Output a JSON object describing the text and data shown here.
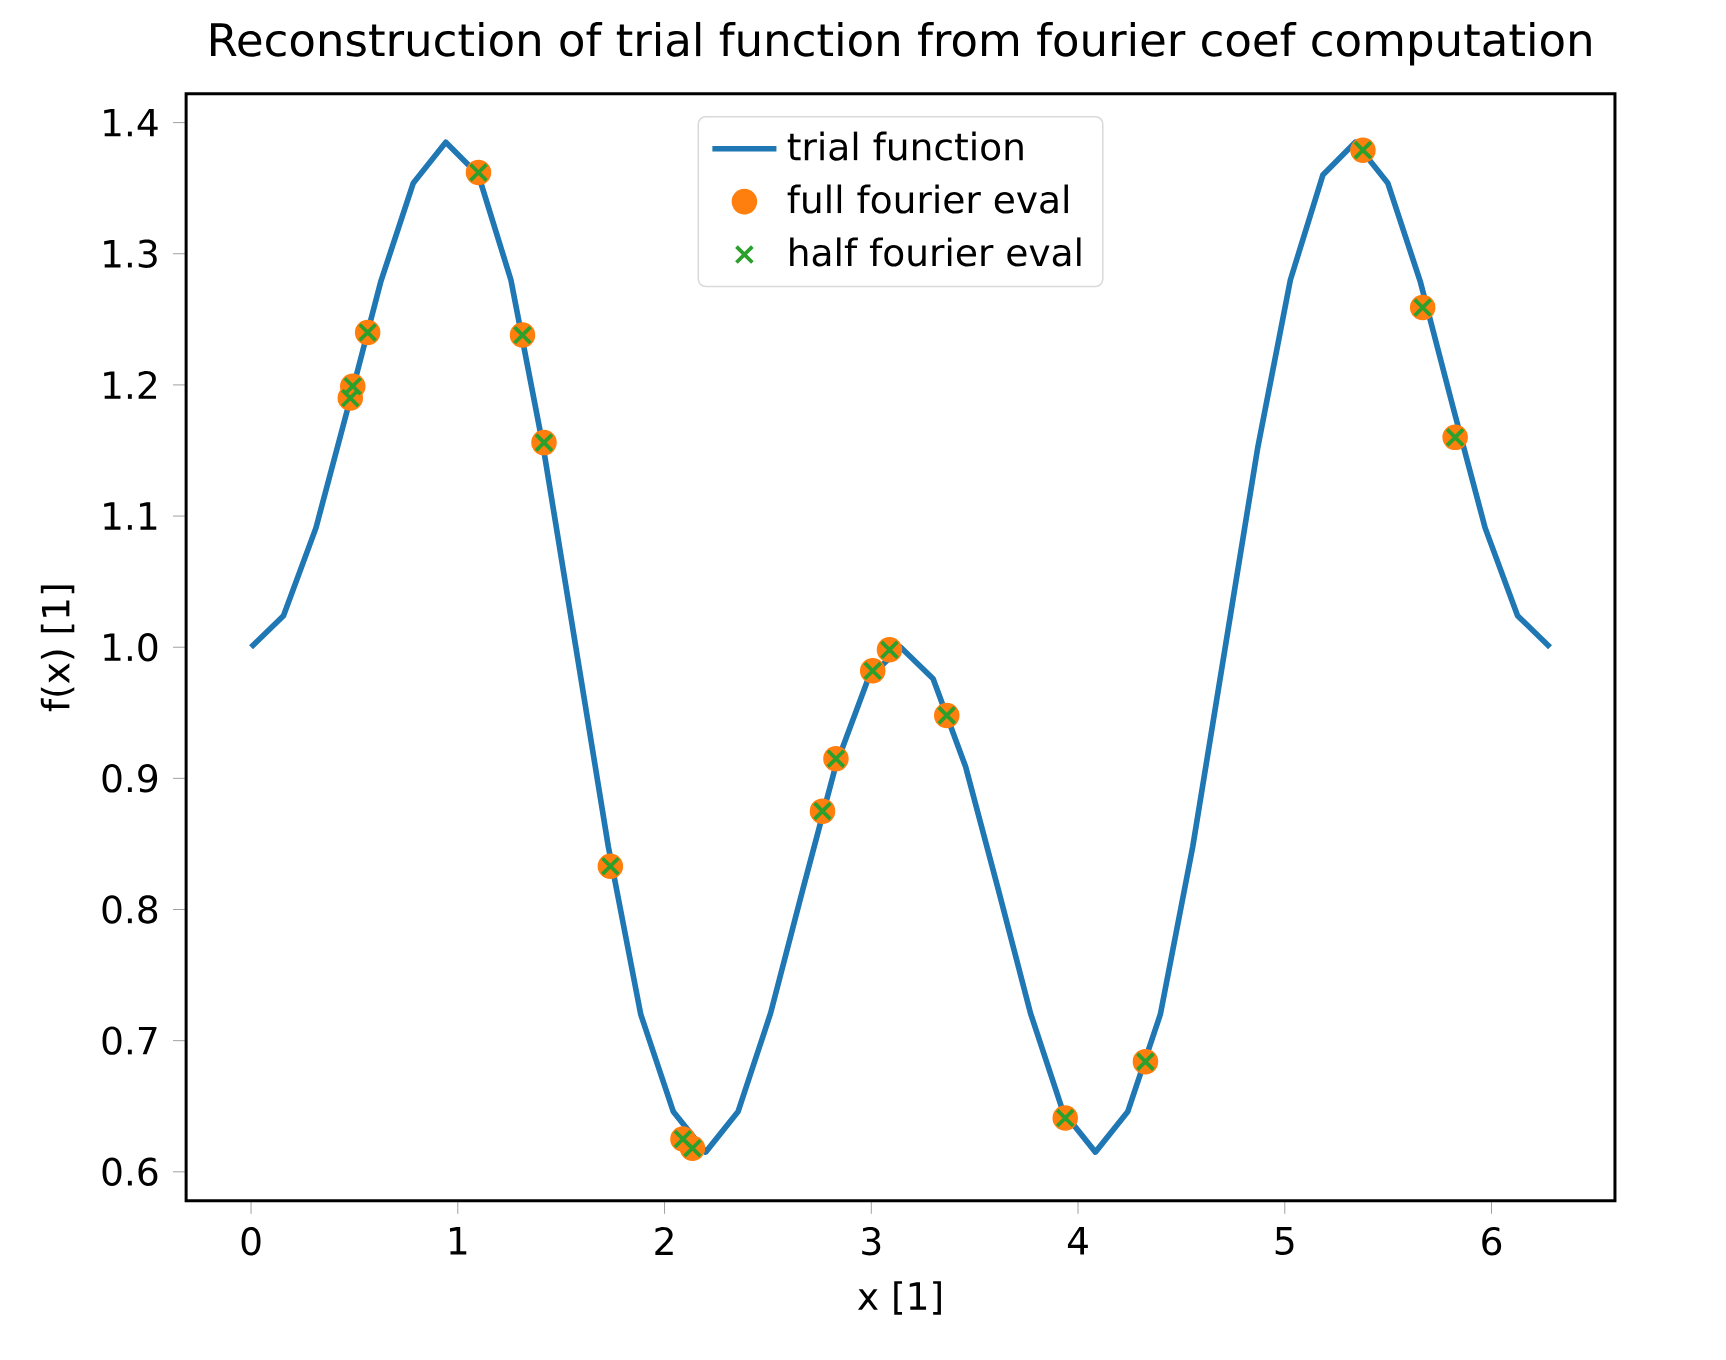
{
  "chart_data": {
    "type": "line",
    "title": "Reconstruction of trial function from fourier coef computation",
    "xlabel": "x [1]",
    "ylabel": "f(x) [1]",
    "xlim": [
      -0.314,
      6.597
    ],
    "ylim": [
      0.578,
      1.422
    ],
    "xticks": [
      0,
      1,
      2,
      3,
      4,
      5,
      6
    ],
    "yticks": [
      {
        "value": 0.6,
        "label": "0.6"
      },
      {
        "value": 0.7,
        "label": "0.7"
      },
      {
        "value": 0.8,
        "label": "0.8"
      },
      {
        "value": 0.9,
        "label": "0.9"
      },
      {
        "value": 1.0,
        "label": "1.0"
      },
      {
        "value": 1.1,
        "label": "1.1"
      },
      {
        "value": 1.2,
        "label": "1.2"
      },
      {
        "value": 1.3,
        "label": "1.3"
      },
      {
        "value": 1.4,
        "label": "1.4"
      }
    ],
    "grid": false,
    "legend": "top",
    "series": [
      {
        "name": "trial function",
        "color": "#1f77b4",
        "marker": "none",
        "line_style": "solid",
        "x": [
          0,
          0.157,
          0.314,
          0.471,
          0.628,
          0.785,
          0.942,
          1.1,
          1.257,
          1.414,
          1.571,
          1.728,
          1.885,
          2.042,
          2.199,
          2.356,
          2.513,
          2.67,
          2.827,
          2.985,
          3.142,
          3.299,
          3.456,
          3.613,
          3.77,
          3.927,
          4.084,
          4.241,
          4.398,
          4.555,
          4.712,
          4.869,
          5.027,
          5.184,
          5.341,
          5.498,
          5.655,
          5.812,
          5.969,
          6.126,
          6.283
        ],
        "values": [
          1.0,
          1.024,
          1.091,
          1.184,
          1.279,
          1.354,
          1.385,
          1.36,
          1.28,
          1.152,
          1.0,
          0.848,
          0.72,
          0.646,
          0.615,
          0.646,
          0.721,
          0.816,
          0.909,
          0.976,
          1.0,
          0.976,
          0.909,
          0.816,
          0.721,
          0.646,
          0.615,
          0.646,
          0.72,
          0.848,
          1.0,
          1.152,
          1.28,
          1.36,
          1.385,
          1.354,
          1.279,
          1.184,
          1.091,
          1.024,
          1.0
        ]
      },
      {
        "name": "full fourier eval",
        "type": "scatter",
        "color": "#ff7f0e",
        "marker": "circle",
        "x": [
          0.48,
          0.492,
          0.564,
          1.1,
          1.313,
          1.417,
          1.738,
          2.089,
          2.135,
          2.764,
          2.829,
          3.007,
          3.088,
          3.365,
          3.938,
          4.326,
          5.378,
          5.667,
          5.824
        ],
        "values": [
          1.19,
          1.199,
          1.24,
          1.362,
          1.238,
          1.156,
          0.833,
          0.625,
          0.618,
          0.875,
          0.915,
          0.982,
          0.998,
          0.948,
          0.641,
          0.684,
          1.379,
          1.259,
          1.16
        ]
      },
      {
        "name": "half fourier eval",
        "type": "scatter",
        "color": "#2ca02c",
        "marker": "cross",
        "x": [
          0.48,
          0.492,
          0.564,
          1.1,
          1.313,
          1.417,
          1.738,
          2.089,
          2.135,
          2.764,
          2.829,
          3.007,
          3.088,
          3.365,
          3.938,
          4.326,
          5.378,
          5.667,
          5.824
        ],
        "values": [
          1.19,
          1.199,
          1.24,
          1.362,
          1.238,
          1.156,
          0.833,
          0.625,
          0.618,
          0.875,
          0.915,
          0.982,
          0.998,
          0.948,
          0.641,
          0.684,
          1.379,
          1.259,
          1.16
        ]
      }
    ]
  }
}
